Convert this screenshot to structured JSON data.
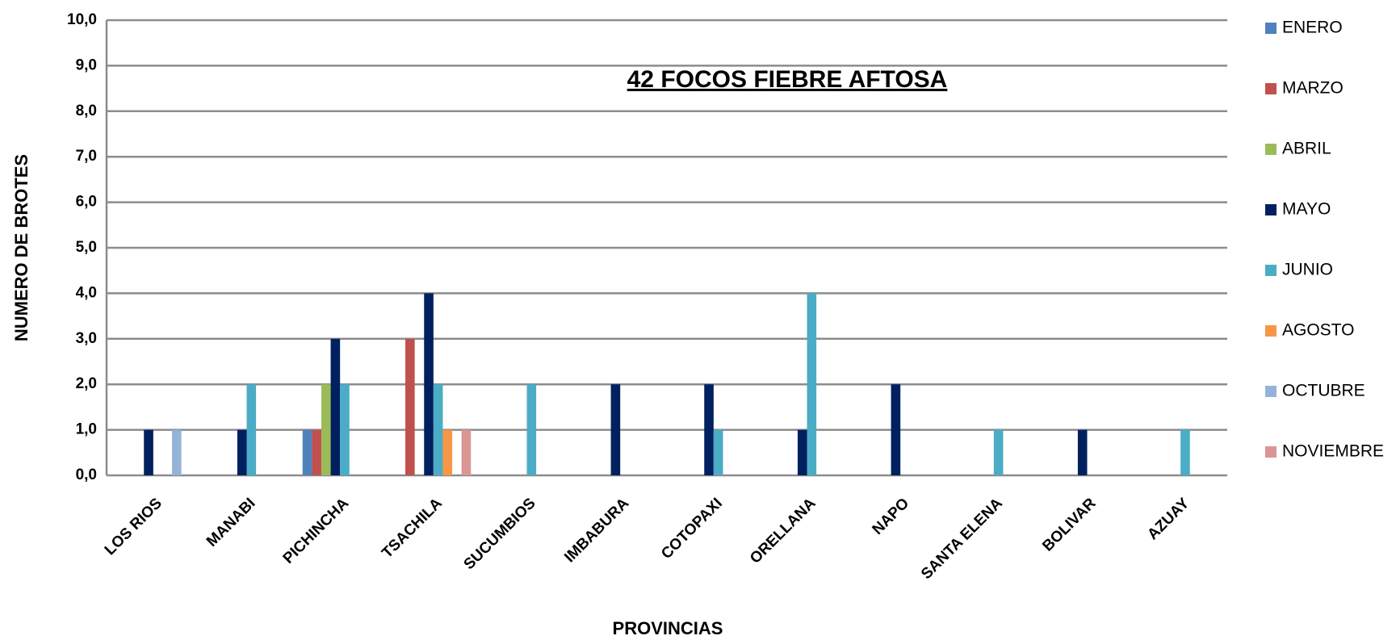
{
  "chart_data": {
    "type": "bar",
    "title": "42 FOCOS  FIEBRE AFTOSA",
    "x_label": "PROVINCIAS",
    "y_label": "NUMERO DE BROTES",
    "categories": [
      "LOS RIOS",
      "MANABI",
      "PICHINCHA",
      "TSACHILA",
      "SUCUMBIOS",
      "IMBABURA",
      "COTOPAXI",
      "ORELLANA",
      "NAPO",
      "SANTA ELENA",
      "BOLIVAR",
      "AZUAY"
    ],
    "series": [
      {
        "name": "ENERO",
        "color": "#4f81bd",
        "values": [
          0,
          0,
          1,
          0,
          0,
          0,
          0,
          0,
          0,
          0,
          0,
          0
        ]
      },
      {
        "name": "MARZO",
        "color": "#c0504d",
        "values": [
          0,
          0,
          1,
          3,
          0,
          0,
          0,
          0,
          0,
          0,
          0,
          0
        ]
      },
      {
        "name": "ABRIL",
        "color": "#9bbb59",
        "values": [
          0,
          0,
          2,
          0,
          0,
          0,
          0,
          0,
          0,
          0,
          0,
          0
        ]
      },
      {
        "name": "MAYO",
        "color": "#002060",
        "values": [
          1,
          1,
          3,
          4,
          0,
          2,
          2,
          1,
          2,
          0,
          1,
          0
        ]
      },
      {
        "name": "JUNIO",
        "color": "#4bacc6",
        "values": [
          0,
          2,
          2,
          2,
          2,
          0,
          1,
          4,
          0,
          1,
          0,
          1
        ]
      },
      {
        "name": "AGOSTO",
        "color": "#f79646",
        "values": [
          0,
          0,
          0,
          1,
          0,
          0,
          0,
          0,
          0,
          0,
          0,
          0
        ]
      },
      {
        "name": "OCTUBRE",
        "color": "#95b3d7",
        "values": [
          1,
          0,
          0,
          0,
          0,
          0,
          0,
          0,
          0,
          0,
          0,
          0
        ]
      },
      {
        "name": "NOVIEMBRE",
        "color": "#d99694",
        "values": [
          0,
          0,
          0,
          1,
          0,
          0,
          0,
          0,
          0,
          0,
          0,
          0
        ]
      }
    ],
    "ylim": [
      0,
      10
    ],
    "yticks": [
      {
        "value": 0,
        "label": "0,0"
      },
      {
        "value": 1,
        "label": "1,0"
      },
      {
        "value": 2,
        "label": "2,0"
      },
      {
        "value": 3,
        "label": "3,0"
      },
      {
        "value": 4,
        "label": "4,0"
      },
      {
        "value": 5,
        "label": "5,0"
      },
      {
        "value": 6,
        "label": "6,0"
      },
      {
        "value": 7,
        "label": "7,0"
      },
      {
        "value": 8,
        "label": "8,0"
      },
      {
        "value": 9,
        "label": "9,0"
      },
      {
        "value": 10,
        "label": "10,0"
      }
    ],
    "grid": true,
    "legend": "right"
  }
}
